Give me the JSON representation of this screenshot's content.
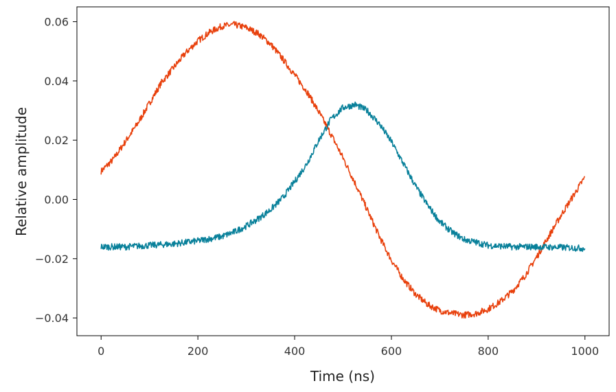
{
  "chart_data": {
    "type": "line",
    "title": "",
    "xlabel": "Time (ns)",
    "ylabel": "Relative amplitude",
    "xlim": [
      -50,
      1050
    ],
    "ylim": [
      -0.046,
      0.065
    ],
    "grid": false,
    "legend": "none",
    "x_ticks": [
      0,
      200,
      400,
      600,
      800,
      1000
    ],
    "x_tick_labels": [
      "0",
      "200",
      "400",
      "600",
      "800",
      "1000"
    ],
    "y_ticks": [
      0.06,
      0.04,
      0.02,
      0.0,
      -0.02,
      -0.04
    ],
    "y_tick_labels": [
      "0.06",
      "0.04",
      "0.02",
      "0.00",
      "−0.02",
      "−0.04"
    ],
    "series": [
      {
        "color": "#E8400C",
        "points": [
          [
            0,
            0.0095
          ],
          [
            25,
            0.0135
          ],
          [
            50,
            0.0195
          ],
          [
            75,
            0.0255
          ],
          [
            100,
            0.0325
          ],
          [
            125,
            0.0395
          ],
          [
            150,
            0.0445
          ],
          [
            175,
            0.0495
          ],
          [
            200,
            0.0535
          ],
          [
            225,
            0.0565
          ],
          [
            250,
            0.0585
          ],
          [
            275,
            0.059
          ],
          [
            300,
            0.058
          ],
          [
            325,
            0.056
          ],
          [
            350,
            0.0525
          ],
          [
            375,
            0.0475
          ],
          [
            400,
            0.042
          ],
          [
            425,
            0.0365
          ],
          [
            450,
            0.0295
          ],
          [
            475,
            0.022
          ],
          [
            500,
            0.014
          ],
          [
            525,
            0.0055
          ],
          [
            550,
            -0.0035
          ],
          [
            575,
            -0.0125
          ],
          [
            600,
            -0.0205
          ],
          [
            625,
            -0.027
          ],
          [
            650,
            -0.032
          ],
          [
            675,
            -0.0355
          ],
          [
            700,
            -0.0375
          ],
          [
            725,
            -0.0385
          ],
          [
            750,
            -0.039
          ],
          [
            775,
            -0.0385
          ],
          [
            800,
            -0.037
          ],
          [
            825,
            -0.0345
          ],
          [
            850,
            -0.031
          ],
          [
            875,
            -0.026
          ],
          [
            900,
            -0.0195
          ],
          [
            925,
            -0.0125
          ],
          [
            950,
            -0.0055
          ],
          [
            975,
            0.001
          ],
          [
            1000,
            0.0075
          ]
        ]
      },
      {
        "color": "#08809A",
        "points": [
          [
            0,
            -0.016
          ],
          [
            50,
            -0.016
          ],
          [
            100,
            -0.0155
          ],
          [
            150,
            -0.015
          ],
          [
            200,
            -0.014
          ],
          [
            250,
            -0.0125
          ],
          [
            275,
            -0.011
          ],
          [
            300,
            -0.009
          ],
          [
            325,
            -0.0065
          ],
          [
            350,
            -0.0035
          ],
          [
            375,
            0.0005
          ],
          [
            400,
            0.006
          ],
          [
            425,
            0.012
          ],
          [
            450,
            0.02
          ],
          [
            475,
            0.027
          ],
          [
            500,
            0.031
          ],
          [
            525,
            0.032
          ],
          [
            550,
            0.03
          ],
          [
            575,
            0.0255
          ],
          [
            600,
            0.0195
          ],
          [
            625,
            0.012
          ],
          [
            650,
            0.0045
          ],
          [
            675,
            -0.002
          ],
          [
            700,
            -0.0075
          ],
          [
            725,
            -0.011
          ],
          [
            750,
            -0.0135
          ],
          [
            775,
            -0.0145
          ],
          [
            800,
            -0.0155
          ],
          [
            850,
            -0.016
          ],
          [
            900,
            -0.016
          ],
          [
            950,
            -0.0162
          ],
          [
            1000,
            -0.0165
          ]
        ]
      }
    ]
  }
}
